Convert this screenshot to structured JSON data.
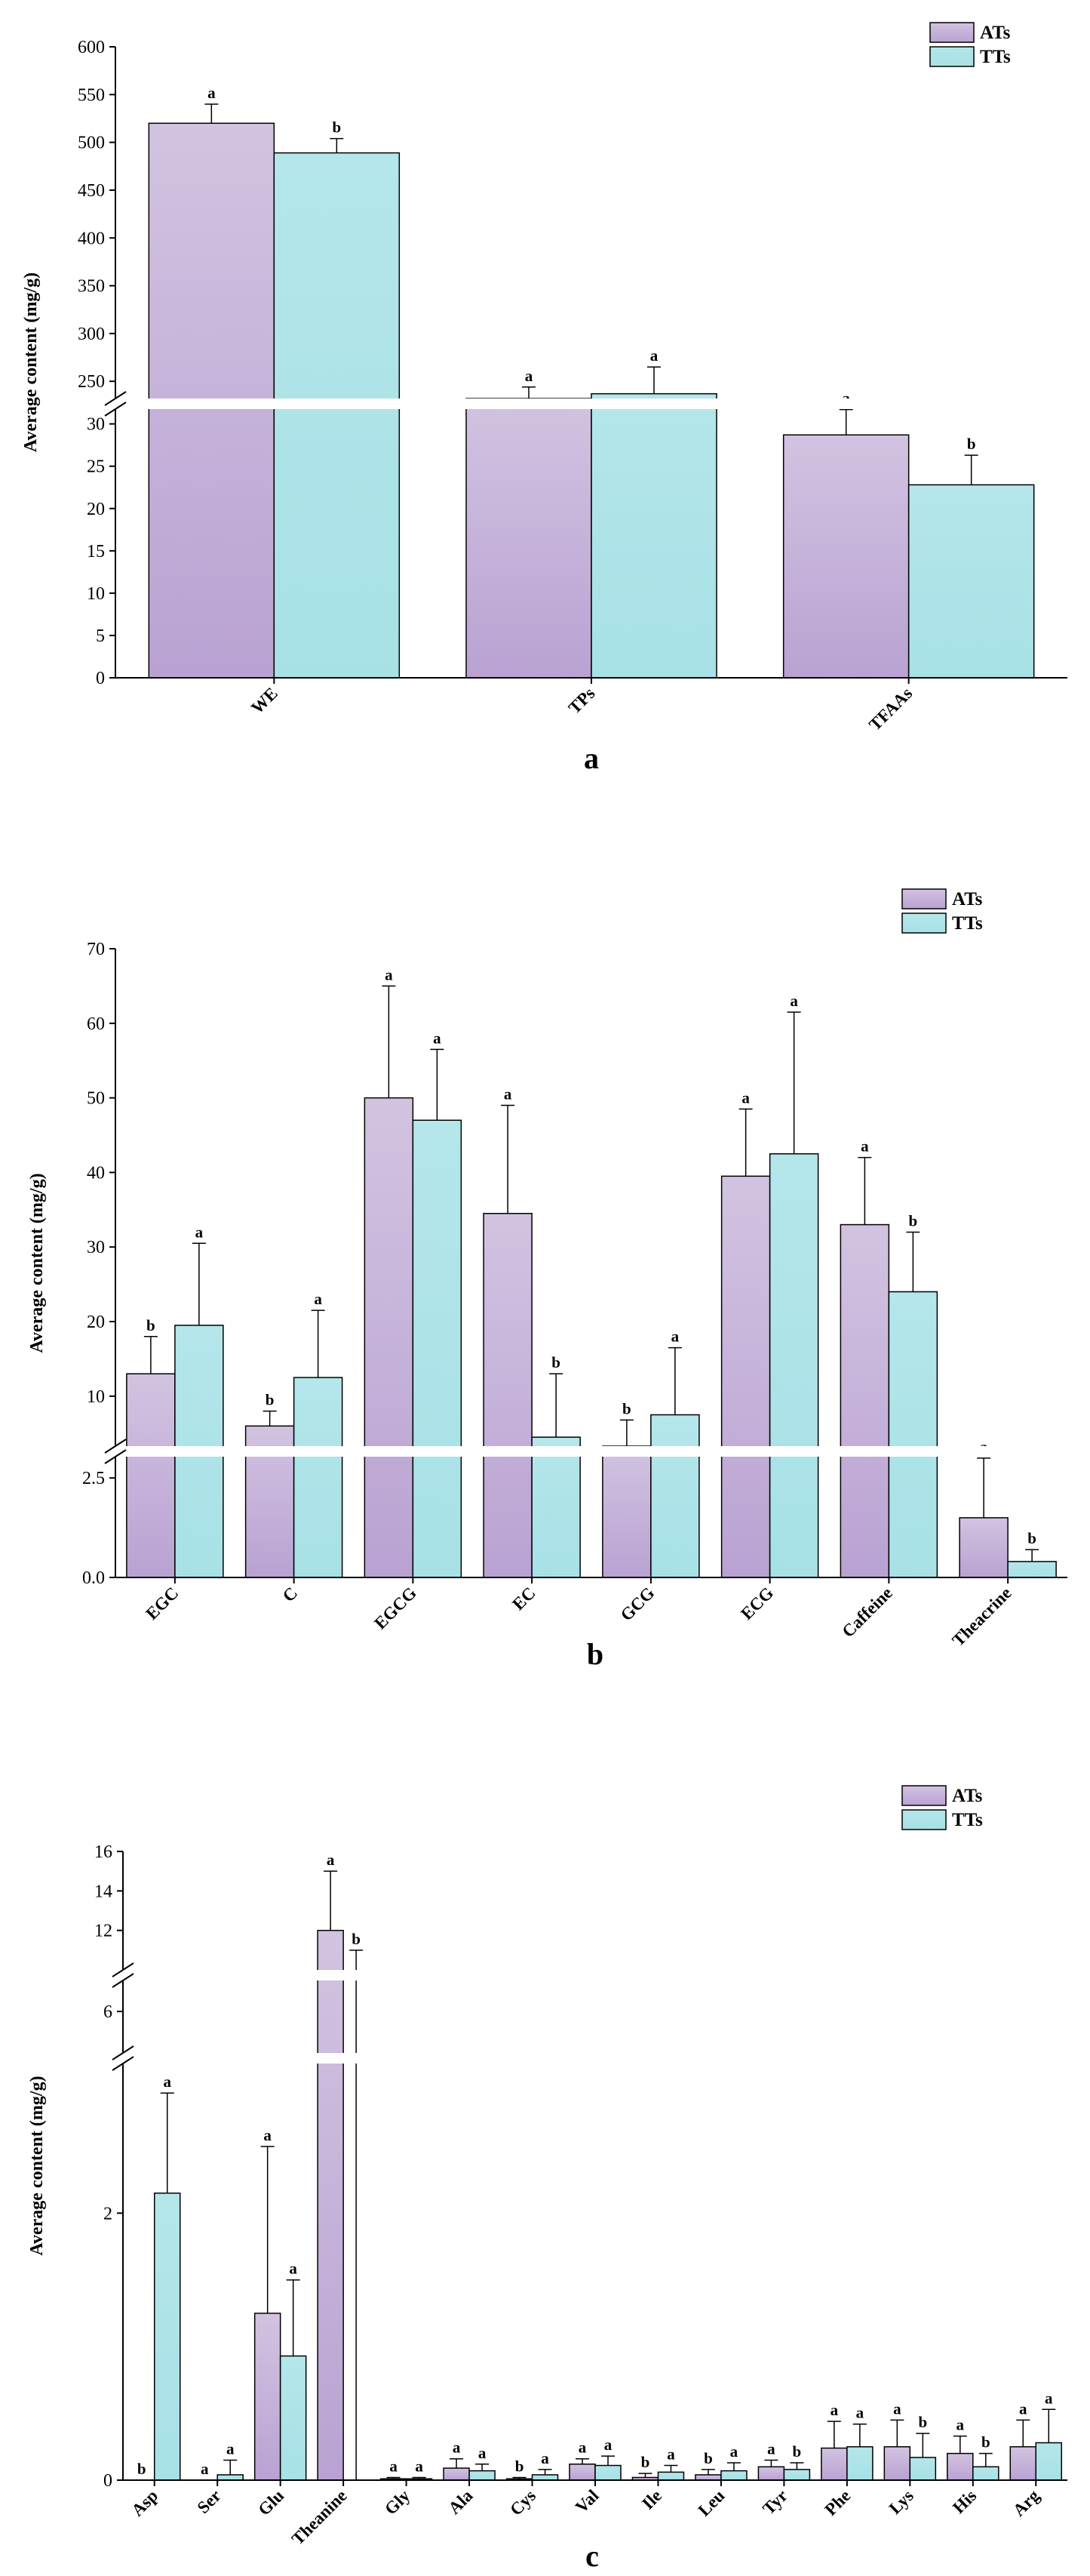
{
  "colors": {
    "ATs": "#d2c3e1",
    "ATs_dark": "#b9a2d2",
    "TTs": "#b4e6ea",
    "TTs_dark": "#a7e1e6",
    "axis": "#000000",
    "break": "#ffffff"
  },
  "chart_data": [
    {
      "type": "bar",
      "panel_label": "a",
      "ylabel": "Average content (mg/g)",
      "categories": [
        "WE",
        "TPs",
        "TFAAs"
      ],
      "series": [
        {
          "name": "ATs",
          "values": [
            520,
            232,
            28.7
          ],
          "errors": [
            20,
            12,
            3
          ],
          "sig": [
            "a",
            "a",
            "a"
          ]
        },
        {
          "name": "TTs",
          "values": [
            489,
            237,
            22.8
          ],
          "errors": [
            15,
            28,
            3.5
          ],
          "sig": [
            "b",
            "a",
            "b"
          ]
        }
      ],
      "legend": "top-right",
      "y_lower_range": [
        0,
        33
      ],
      "y_upper_range": [
        232,
        600
      ],
      "y_ticks_lower": [
        0,
        5,
        10,
        15,
        20,
        25,
        30
      ],
      "y_ticks_upper": [
        250,
        300,
        350,
        400,
        450,
        500,
        550,
        600
      ]
    },
    {
      "type": "bar",
      "panel_label": "b",
      "ylabel": "Average content (mg/g)",
      "categories": [
        "EGC",
        "C",
        "EGCG",
        "EC",
        "GCG",
        "ECG",
        "Caffeine",
        "Theacrine"
      ],
      "series": [
        {
          "name": "ATs",
          "values": [
            13,
            6,
            50,
            34.5,
            3.3,
            39.5,
            33,
            1.5
          ],
          "errors": [
            5,
            2,
            15,
            14.5,
            3.5,
            9,
            9,
            1.5
          ],
          "sig": [
            "b",
            "b",
            "a",
            "a",
            "b",
            "a",
            "a",
            "a"
          ]
        },
        {
          "name": "TTs",
          "values": [
            19.5,
            12.5,
            47,
            4.5,
            7.5,
            42.5,
            24,
            0.4
          ],
          "errors": [
            11,
            9,
            9.5,
            8.5,
            9,
            19,
            8,
            0.3
          ],
          "sig": [
            "a",
            "a",
            "a",
            "b",
            "a",
            "a",
            "b",
            "b"
          ]
        }
      ],
      "legend": "top-right",
      "y_lower_range": [
        0,
        3.3
      ],
      "y_upper_range": [
        3.3,
        70
      ],
      "y_ticks_lower": [
        0.0,
        2.5
      ],
      "y_ticks_upper": [
        10,
        20,
        30,
        40,
        50,
        60,
        70
      ]
    },
    {
      "type": "bar",
      "panel_label": "c",
      "ylabel": "Average content (mg/g)",
      "categories": [
        "Asp",
        "Ser",
        "Glu",
        "Theanine",
        "Gly",
        "Ala",
        "Cys",
        "Val",
        "Ile",
        "Leu",
        "Tyr",
        "Phe",
        "Lys",
        "His",
        "Arg"
      ],
      "series": [
        {
          "name": "ATs",
          "values": [
            0,
            0,
            1.25,
            12,
            0.01,
            0.09,
            0.01,
            0.12,
            0.02,
            0.04,
            0.1,
            0.24,
            0.25,
            0.2,
            0.25
          ],
          "errors": [
            0,
            0,
            1.25,
            3,
            0.01,
            0.07,
            0.01,
            0.04,
            0.03,
            0.04,
            0.05,
            0.2,
            0.2,
            0.13,
            0.2
          ],
          "sig": [
            "b",
            "a",
            "a",
            "a",
            "a",
            "a",
            "b",
            "a",
            "b",
            "b",
            "a",
            "a",
            "a",
            "a",
            "a"
          ]
        },
        {
          "name": "TTs",
          "values": [
            2.15,
            0.04,
            0.93,
            9.5,
            0.01,
            0.07,
            0.04,
            0.11,
            0.06,
            0.07,
            0.08,
            0.25,
            0.17,
            0.1,
            0.28
          ],
          "errors": [
            0.75,
            0.11,
            0.57,
            1.5,
            0.01,
            0.05,
            0.04,
            0.07,
            0.05,
            0.06,
            0.05,
            0.17,
            0.18,
            0.1,
            0.25
          ],
          "sig": [
            "a",
            "a",
            "a",
            "b",
            "a",
            "a",
            "a",
            "a",
            "a",
            "a",
            "b",
            "a",
            "b",
            "b",
            "a"
          ]
        }
      ],
      "legend": "top-right",
      "y_lower_range": [
        0,
        3.2
      ],
      "y_mid_range": [
        5,
        7
      ],
      "y_upper_range": [
        10,
        16
      ],
      "y_ticks_lower": [
        0,
        2
      ],
      "y_ticks_mid": [
        6
      ],
      "y_ticks_upper": [
        12,
        14,
        16
      ]
    }
  ]
}
